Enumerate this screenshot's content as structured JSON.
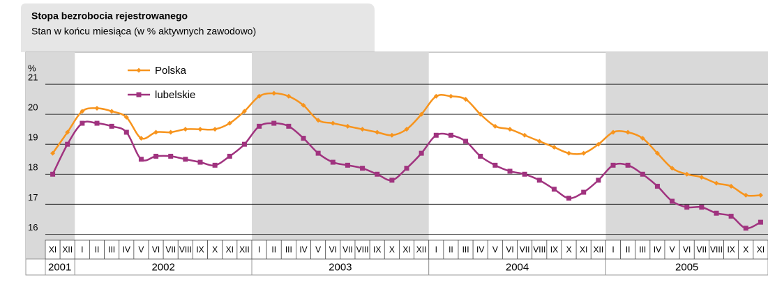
{
  "chart_data": {
    "type": "line",
    "title": "Stopa bezrobocia rejestrowanego",
    "subtitle": "Stan w końcu miesiąca (w % aktywnych zawodowo)",
    "y_label": "%",
    "categories": [
      "XI",
      "XII",
      "I",
      "II",
      "III",
      "IV",
      "V",
      "VI",
      "VII",
      "VIII",
      "IX",
      "X",
      "XI",
      "XII",
      "I",
      "II",
      "III",
      "IV",
      "V",
      "VI",
      "VII",
      "VIII",
      "IX",
      "X",
      "XI",
      "XII",
      "I",
      "II",
      "III",
      "IV",
      "V",
      "VI",
      "VII",
      "VIII",
      "IX",
      "X",
      "XI",
      "XII",
      "I",
      "II",
      "III",
      "IV",
      "V",
      "VI",
      "VII",
      "VIII",
      "IX",
      "X",
      "XI"
    ],
    "years": [
      "2001",
      "2002",
      "2003",
      "2004",
      "2005"
    ],
    "series": [
      {
        "name": "Polska",
        "color": "#f7941d",
        "marker": "diamond",
        "values": [
          18.7,
          19.4,
          20.1,
          20.2,
          20.1,
          19.9,
          19.2,
          19.4,
          19.4,
          19.5,
          19.5,
          19.5,
          19.7,
          20.1,
          20.6,
          20.7,
          20.6,
          20.3,
          19.8,
          19.7,
          19.6,
          19.5,
          19.4,
          19.3,
          19.5,
          20.0,
          20.6,
          20.6,
          20.5,
          20.0,
          19.6,
          19.5,
          19.3,
          19.1,
          18.9,
          18.7,
          18.7,
          19.0,
          19.4,
          19.4,
          19.2,
          18.7,
          18.2,
          18.0,
          17.9,
          17.7,
          17.6,
          17.3,
          17.3
        ]
      },
      {
        "name": "lubelskie",
        "color": "#a0337f",
        "marker": "square",
        "values": [
          18.0,
          19.0,
          19.7,
          19.7,
          19.6,
          19.4,
          18.5,
          18.6,
          18.6,
          18.5,
          18.4,
          18.3,
          18.6,
          19.0,
          19.6,
          19.7,
          19.6,
          19.2,
          18.7,
          18.4,
          18.3,
          18.2,
          18.0,
          17.8,
          18.2,
          18.7,
          19.3,
          19.3,
          19.1,
          18.6,
          18.3,
          18.1,
          18.0,
          17.8,
          17.5,
          17.2,
          17.4,
          17.8,
          18.3,
          18.3,
          18.0,
          17.6,
          17.1,
          16.9,
          16.9,
          16.7,
          16.6,
          16.2,
          16.4
        ]
      }
    ],
    "ylim": [
      15.8,
      22
    ],
    "yticks": [
      16,
      17,
      18,
      19,
      20,
      21
    ],
    "grid": true
  }
}
